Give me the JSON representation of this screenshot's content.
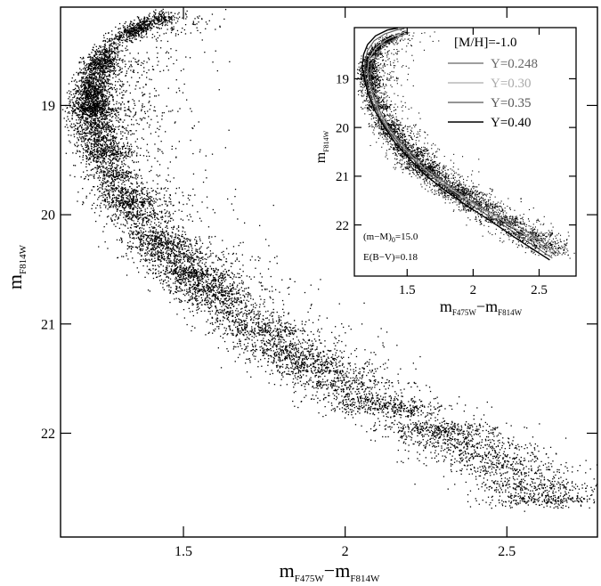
{
  "chart_data": [
    {
      "type": "scatter",
      "panel": "main",
      "xlabel_main": "m",
      "xlabel_sub1": "F475W",
      "xlabel_dash": "−m",
      "xlabel_sub2": "F814W",
      "ylabel_main": "m",
      "ylabel_sub": "F814W",
      "xlim": [
        1.12,
        2.78
      ],
      "ylim": [
        22.95,
        18.1
      ],
      "y_inverted": true,
      "xticks": [
        1.5,
        2,
        2.5
      ],
      "xtick_labels": [
        "1.5",
        "2",
        "2.5"
      ],
      "yticks": [
        19,
        20,
        21,
        22
      ],
      "ytick_labels": [
        "19",
        "20",
        "21",
        "22"
      ],
      "grid": false,
      "series": [
        {
          "marker": "dot",
          "density_per_row": 60,
          "ridge": [
            [
              2.63,
              22.65
            ],
            [
              2.5,
              22.35
            ],
            [
              2.3,
              22.0
            ],
            [
              2.1,
              21.75
            ],
            [
              1.95,
              21.5
            ],
            [
              1.82,
              21.25
            ],
            [
              1.7,
              21.0
            ],
            [
              1.6,
              20.75
            ],
            [
              1.5,
              20.5
            ],
            [
              1.42,
              20.25
            ],
            [
              1.35,
              20.0
            ],
            [
              1.3,
              19.75
            ],
            [
              1.26,
              19.5
            ],
            [
              1.23,
              19.25
            ],
            [
              1.21,
              19.0
            ],
            [
              1.22,
              18.75
            ],
            [
              1.25,
              18.55
            ],
            [
              1.3,
              18.38
            ],
            [
              1.38,
              18.25
            ],
            [
              1.45,
              18.18
            ]
          ]
        }
      ]
    },
    {
      "type": "scatter",
      "panel": "inset",
      "xlabel_main": "m",
      "xlabel_sub1": "F475W",
      "xlabel_dash": "−m",
      "xlabel_sub2": "F814W",
      "ylabel_main": "m",
      "ylabel_sub": "F814W",
      "xlim": [
        1.1,
        2.78
      ],
      "ylim": [
        23.05,
        17.95
      ],
      "y_inverted": true,
      "xticks": [
        1.5,
        2,
        2.5
      ],
      "xtick_labels": [
        "1.5",
        "2",
        "2.5"
      ],
      "yticks": [
        19,
        20,
        21,
        22
      ],
      "ytick_labels": [
        "19",
        "20",
        "21",
        "22"
      ],
      "grid": false,
      "legend_position": "top-right",
      "legend_title": "[M/H]=-1.0",
      "annotations": [
        {
          "main": "(m−M)",
          "sub": "0",
          "rest": "=15.0"
        },
        {
          "main": "E(B−V)=0.18",
          "sub": "",
          "rest": ""
        }
      ],
      "series": [
        {
          "name": "Y=0.248",
          "color": "#666666",
          "marker": "line",
          "points": [
            [
              2.65,
              22.6
            ],
            [
              2.5,
              22.3
            ],
            [
              2.3,
              21.95
            ],
            [
              2.1,
              21.7
            ],
            [
              1.95,
              21.45
            ],
            [
              1.82,
              21.2
            ],
            [
              1.7,
              20.95
            ],
            [
              1.6,
              20.7
            ],
            [
              1.5,
              20.45
            ],
            [
              1.42,
              20.2
            ],
            [
              1.35,
              19.95
            ],
            [
              1.3,
              19.7
            ],
            [
              1.26,
              19.45
            ],
            [
              1.23,
              19.2
            ],
            [
              1.22,
              18.95
            ],
            [
              1.23,
              18.7
            ],
            [
              1.28,
              18.45
            ],
            [
              1.36,
              18.25
            ],
            [
              1.45,
              18.12
            ],
            [
              1.52,
              18.05
            ]
          ]
        },
        {
          "name": "Y=0.30",
          "color": "#aaaaaa",
          "marker": "line",
          "points": [
            [
              2.62,
              22.63
            ],
            [
              2.45,
              22.3
            ],
            [
              2.25,
              21.95
            ],
            [
              2.05,
              21.65
            ],
            [
              1.88,
              21.35
            ],
            [
              1.75,
              21.1
            ],
            [
              1.63,
              20.85
            ],
            [
              1.52,
              20.55
            ],
            [
              1.43,
              20.28
            ],
            [
              1.35,
              20.0
            ],
            [
              1.29,
              19.7
            ],
            [
              1.24,
              19.4
            ],
            [
              1.21,
              19.1
            ],
            [
              1.2,
              18.85
            ],
            [
              1.21,
              18.6
            ],
            [
              1.26,
              18.38
            ],
            [
              1.34,
              18.2
            ],
            [
              1.44,
              18.08
            ],
            [
              1.5,
              18.02
            ]
          ]
        },
        {
          "name": "Y=0.35",
          "color": "#555555",
          "marker": "line",
          "points": [
            [
              2.6,
              22.68
            ],
            [
              2.4,
              22.32
            ],
            [
              2.2,
              21.95
            ],
            [
              2.0,
              21.62
            ],
            [
              1.83,
              21.3
            ],
            [
              1.69,
              21.02
            ],
            [
              1.57,
              20.72
            ],
            [
              1.46,
              20.42
            ],
            [
              1.37,
              20.12
            ],
            [
              1.3,
              19.82
            ],
            [
              1.24,
              19.5
            ],
            [
              1.2,
              19.2
            ],
            [
              1.18,
              18.92
            ],
            [
              1.18,
              18.65
            ],
            [
              1.2,
              18.42
            ],
            [
              1.25,
              18.22
            ],
            [
              1.33,
              18.08
            ],
            [
              1.42,
              18.0
            ],
            [
              1.48,
              17.97
            ]
          ]
        },
        {
          "name": "Y=0.40",
          "color": "#000000",
          "marker": "line",
          "points": [
            [
              2.58,
              22.72
            ],
            [
              2.35,
              22.32
            ],
            [
              2.15,
              21.95
            ],
            [
              1.95,
              21.6
            ],
            [
              1.78,
              21.28
            ],
            [
              1.64,
              20.98
            ],
            [
              1.52,
              20.65
            ],
            [
              1.41,
              20.32
            ],
            [
              1.33,
              20.0
            ],
            [
              1.26,
              19.68
            ],
            [
              1.21,
              19.35
            ],
            [
              1.18,
              19.05
            ],
            [
              1.16,
              18.75
            ],
            [
              1.17,
              18.5
            ],
            [
              1.2,
              18.3
            ],
            [
              1.26,
              18.12
            ],
            [
              1.35,
              18.0
            ],
            [
              1.43,
              17.96
            ]
          ]
        }
      ]
    }
  ]
}
